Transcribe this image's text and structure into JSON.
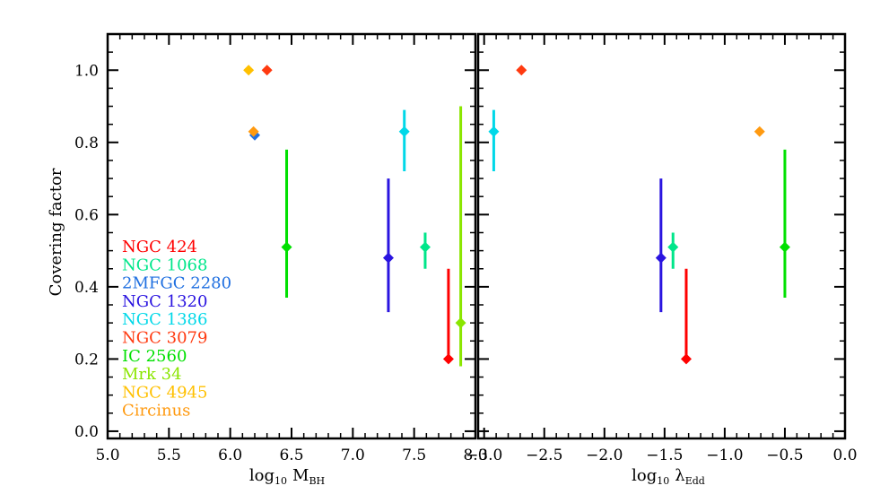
{
  "chart_data": [
    {
      "type": "scatter",
      "xlabel": "log10 MBH",
      "ylabel": "Covering factor",
      "xlim": [
        5.0,
        8.0
      ],
      "ylim": [
        -0.02,
        1.1
      ],
      "xticks": [
        "5.0",
        "5.5",
        "6.0",
        "6.5",
        "7.0",
        "7.5",
        "8.0"
      ],
      "yticks": [
        "0.0",
        "0.2",
        "0.4",
        "0.6",
        "0.8",
        "1.0"
      ],
      "points": [
        {
          "source": "NGC 424",
          "x": 7.78,
          "y": 0.2,
          "err_low": 0.2,
          "err_high": 0.45
        },
        {
          "source": "NGC 1068",
          "x": 7.59,
          "y": 0.51,
          "err_low": 0.45,
          "err_high": 0.55
        },
        {
          "source": "2MFGC 2280",
          "x": 6.2,
          "y": 0.82,
          "err_low": 0.82,
          "err_high": 0.82
        },
        {
          "source": "NGC 1320",
          "x": 7.29,
          "y": 0.48,
          "err_low": 0.33,
          "err_high": 0.7
        },
        {
          "source": "NGC 1386",
          "x": 7.42,
          "y": 0.83,
          "err_low": 0.72,
          "err_high": 0.89
        },
        {
          "source": "NGC 3079",
          "x": 6.3,
          "y": 1.0,
          "err_low": 1.0,
          "err_high": 1.0
        },
        {
          "source": "IC 2560",
          "x": 6.46,
          "y": 0.51,
          "err_low": 0.37,
          "err_high": 0.78
        },
        {
          "source": "Mrk 34",
          "x": 7.88,
          "y": 0.3,
          "err_low": 0.18,
          "err_high": 0.9
        },
        {
          "source": "NGC 4945",
          "x": 6.15,
          "y": 1.0,
          "err_low": 1.0,
          "err_high": 1.0
        },
        {
          "source": "Circinus",
          "x": 6.19,
          "y": 0.83,
          "err_low": 0.83,
          "err_high": 0.83
        }
      ]
    },
    {
      "type": "scatter",
      "xlabel": "log10 λEdd",
      "ylabel": "",
      "xlim": [
        -3.05,
        0.0
      ],
      "ylim": [
        -0.02,
        1.1
      ],
      "xticks": [
        "−3.0",
        "−2.5",
        "−2.0",
        "−1.5",
        "−1.0",
        "−0.5",
        "0.0"
      ],
      "points": [
        {
          "source": "NGC 3079",
          "x": -2.69,
          "y": 1.0,
          "err_low": 1.0,
          "err_high": 1.0
        },
        {
          "source": "NGC 1386",
          "x": -2.92,
          "y": 0.83,
          "err_low": 0.72,
          "err_high": 0.89
        },
        {
          "source": "Circinus",
          "x": -0.71,
          "y": 0.83,
          "err_low": 0.83,
          "err_high": 0.83
        },
        {
          "source": "IC 2560",
          "x": -0.5,
          "y": 0.51,
          "err_low": 0.37,
          "err_high": 0.78
        },
        {
          "source": "NGC 1320",
          "x": -1.53,
          "y": 0.48,
          "err_low": 0.33,
          "err_high": 0.7
        },
        {
          "source": "NGC 1068",
          "x": -1.43,
          "y": 0.51,
          "err_low": 0.45,
          "err_high": 0.55
        },
        {
          "source": "NGC 424",
          "x": -1.32,
          "y": 0.2,
          "err_low": 0.2,
          "err_high": 0.45
        }
      ]
    }
  ],
  "legend": [
    {
      "label": "NGC 424",
      "color": "#ff0000"
    },
    {
      "label": "NGC 1068",
      "color": "#00e68a"
    },
    {
      "label": "2MFGC 2280",
      "color": "#1f6fe0"
    },
    {
      "label": "NGC 1320",
      "color": "#2a14e0"
    },
    {
      "label": "NGC 1386",
      "color": "#00d8e8"
    },
    {
      "label": "NGC 3079",
      "color": "#ff3a10"
    },
    {
      "label": "IC 2560",
      "color": "#00e000"
    },
    {
      "label": "Mrk 34",
      "color": "#8ae600"
    },
    {
      "label": "NGC 4945",
      "color": "#ffc000"
    },
    {
      "label": "Circinus",
      "color": "#ff9a10"
    }
  ]
}
